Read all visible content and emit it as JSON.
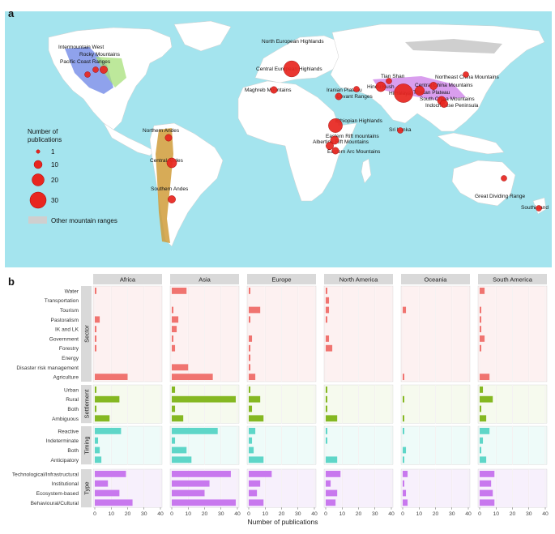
{
  "panel_a": {
    "label": "a",
    "legend_title_lines": [
      "Number of",
      "publications"
    ],
    "legend_sizes": [
      "1",
      "10",
      "20",
      "30"
    ],
    "legend_other": "Other mountain ranges",
    "colors": {
      "ocean": "#a4e4ee",
      "land": "#ffffff",
      "other_mountains": "#cfcfcf",
      "point": "#e8261f"
    },
    "regions": [
      {
        "name": "Intermountain West",
        "pubs": 1
      },
      {
        "name": "Rocky Mountains",
        "pubs": 1
      },
      {
        "name": "Pacific Coast Ranges",
        "pubs": 3
      },
      {
        "name": "Northern Andes",
        "pubs": 2
      },
      {
        "name": "Central Andes",
        "pubs": 7
      },
      {
        "name": "Southern Andes",
        "pubs": 3
      },
      {
        "name": "North European Highlands",
        "pubs": 0
      },
      {
        "name": "Central European Highlands",
        "pubs": 26
      },
      {
        "name": "Maghreb Mountains",
        "pubs": 2
      },
      {
        "name": "Ethiopian Highlands",
        "pubs": 18
      },
      {
        "name": "Eastern Rift mountains",
        "pubs": 4
      },
      {
        "name": "Albertine Rift Mountains",
        "pubs": 3
      },
      {
        "name": "Eastern Arc Mountains",
        "pubs": 2
      },
      {
        "name": "Iranian Plateau",
        "pubs": 1
      },
      {
        "name": "Levant Ranges",
        "pubs": 2
      },
      {
        "name": "Tian Shan",
        "pubs": 1
      },
      {
        "name": "Hindu Kush",
        "pubs": 7
      },
      {
        "name": "Himalaya",
        "pubs": 38
      },
      {
        "name": "Tibetan Plateau",
        "pubs": 6
      },
      {
        "name": "Central China Mountains",
        "pubs": 3
      },
      {
        "name": "Northeast China Mountains",
        "pubs": 1
      },
      {
        "name": "South China Mountains",
        "pubs": 4
      },
      {
        "name": "Indochinese Peninsula",
        "pubs": 3
      },
      {
        "name": "Sri Lanka",
        "pubs": 1
      },
      {
        "name": "Great Dividing Range",
        "pubs": 1
      },
      {
        "name": "Southisland",
        "pubs": 1
      }
    ]
  },
  "chart_data": {
    "type": "bar",
    "panel_label": "b",
    "xlabel": "Number of publications",
    "xlim": [
      0,
      40
    ],
    "xticks": [
      "0",
      "10",
      "20",
      "30",
      "40"
    ],
    "facets": [
      "Africa",
      "Asia",
      "Europe",
      "North America",
      "Oceania",
      "South America"
    ],
    "groups": [
      {
        "name": "Sector",
        "color": "#f07470",
        "bg": "#fdf1f1",
        "categories": [
          "Water",
          "Transportation",
          "Tourism",
          "Pastoralism",
          "IK and LK",
          "Government",
          "Forestry",
          "Energy",
          "Disaster risk management",
          "Agriculture"
        ],
        "values": {
          "Africa": [
            1,
            0,
            0,
            3,
            1,
            1,
            1,
            0,
            0,
            20
          ],
          "Asia": [
            9,
            0,
            1,
            4,
            3,
            1,
            2,
            0,
            10,
            25
          ],
          "Europe": [
            1,
            0,
            7,
            1,
            0,
            2,
            1,
            1,
            1,
            4
          ],
          "North America": [
            1,
            2,
            2,
            1,
            0,
            2,
            4,
            0,
            0,
            0
          ],
          "Oceania": [
            0,
            0,
            2,
            0,
            0,
            0,
            0,
            0,
            0,
            1
          ],
          "South America": [
            3,
            0,
            1,
            1,
            1,
            3,
            1,
            0,
            0,
            6
          ]
        }
      },
      {
        "name": "Settlement",
        "color": "#85b822",
        "bg": "#f6faee",
        "categories": [
          "Urban",
          "Rural",
          "Both",
          "Ambiguous"
        ],
        "values": {
          "Africa": [
            1,
            15,
            1,
            9
          ],
          "Asia": [
            2,
            39,
            2,
            7
          ],
          "Europe": [
            1,
            7,
            2,
            9
          ],
          "North America": [
            1,
            1,
            1,
            7
          ],
          "Oceania": [
            0,
            1,
            0,
            1
          ],
          "South America": [
            2,
            8,
            1,
            4
          ]
        }
      },
      {
        "name": "Timing",
        "color": "#5ed6c8",
        "bg": "#eefbf9",
        "categories": [
          "Reactive",
          "Indeterminate",
          "Both",
          "Anticipatory"
        ],
        "values": {
          "Africa": [
            16,
            2,
            3,
            4
          ],
          "Asia": [
            28,
            2,
            9,
            12
          ],
          "Europe": [
            4,
            2,
            3,
            9
          ],
          "North America": [
            1,
            1,
            0,
            7
          ],
          "Oceania": [
            1,
            0,
            2,
            1
          ],
          "South America": [
            6,
            2,
            1,
            4
          ]
        }
      },
      {
        "name": "Type",
        "color": "#c878ee",
        "bg": "#f7f0fc",
        "categories": [
          "Technological/Infrastructural",
          "Institutional",
          "Ecosystem-based",
          "Behavioural/Cultural"
        ],
        "values": {
          "Africa": [
            19,
            8,
            15,
            23
          ],
          "Asia": [
            36,
            23,
            20,
            39
          ],
          "Europe": [
            14,
            7,
            5,
            9
          ],
          "North America": [
            9,
            3,
            7,
            6
          ],
          "Oceania": [
            3,
            1,
            2,
            3
          ],
          "South America": [
            9,
            7,
            8,
            9
          ]
        }
      }
    ]
  }
}
